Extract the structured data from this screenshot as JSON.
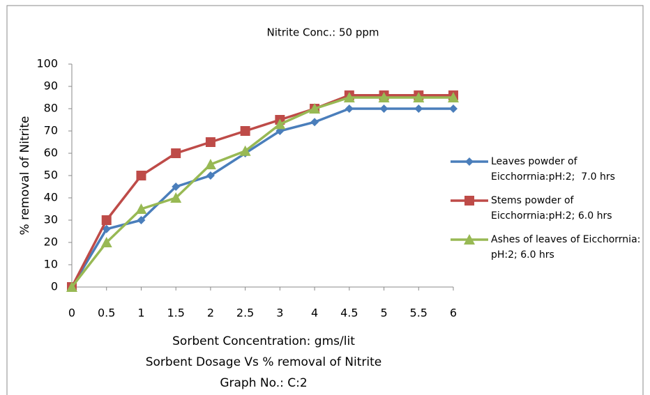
{
  "chart_data": {
    "type": "line",
    "title": "Nitrite Conc.: 50 ppm",
    "x_label": "Sorbent Concentration: gms/lit",
    "y_label": "% removal of Nitrite",
    "subtitles": [
      "Sorbent Dosage Vs % removal of Nitrite",
      "Graph No.: C:2"
    ],
    "categories": [
      "0",
      "0.5",
      "1",
      "1.5",
      "2",
      "2.5",
      "3",
      "4",
      "4.5",
      "5",
      "5.5",
      "6"
    ],
    "series": [
      {
        "name": "Leaves powder of Eicchorrnia:pH:2;  7.0 hrs",
        "color": "#4a7ebb",
        "marker": "diamond",
        "values": [
          0,
          26,
          30,
          45,
          50,
          60,
          70,
          74,
          80,
          80,
          80,
          80
        ]
      },
      {
        "name": "Stems powder of Eicchorrnia:pH:2; 6.0 hrs",
        "color": "#be4b48",
        "marker": "square",
        "values": [
          0,
          30,
          50,
          60,
          65,
          70,
          75,
          80,
          86,
          86,
          86,
          86
        ]
      },
      {
        "name": "Ashes of leaves of Eicchorrnia: pH:2; 6.0 hrs",
        "color": "#98b954",
        "marker": "triangle",
        "values": [
          0,
          20,
          35,
          40,
          55,
          61,
          73,
          80,
          85,
          85,
          85,
          85
        ]
      }
    ],
    "ylim": [
      0,
      100
    ],
    "yticks": [
      0,
      10,
      20,
      30,
      40,
      50,
      60,
      70,
      80,
      90,
      100
    ],
    "grid": false,
    "legend": "right"
  }
}
